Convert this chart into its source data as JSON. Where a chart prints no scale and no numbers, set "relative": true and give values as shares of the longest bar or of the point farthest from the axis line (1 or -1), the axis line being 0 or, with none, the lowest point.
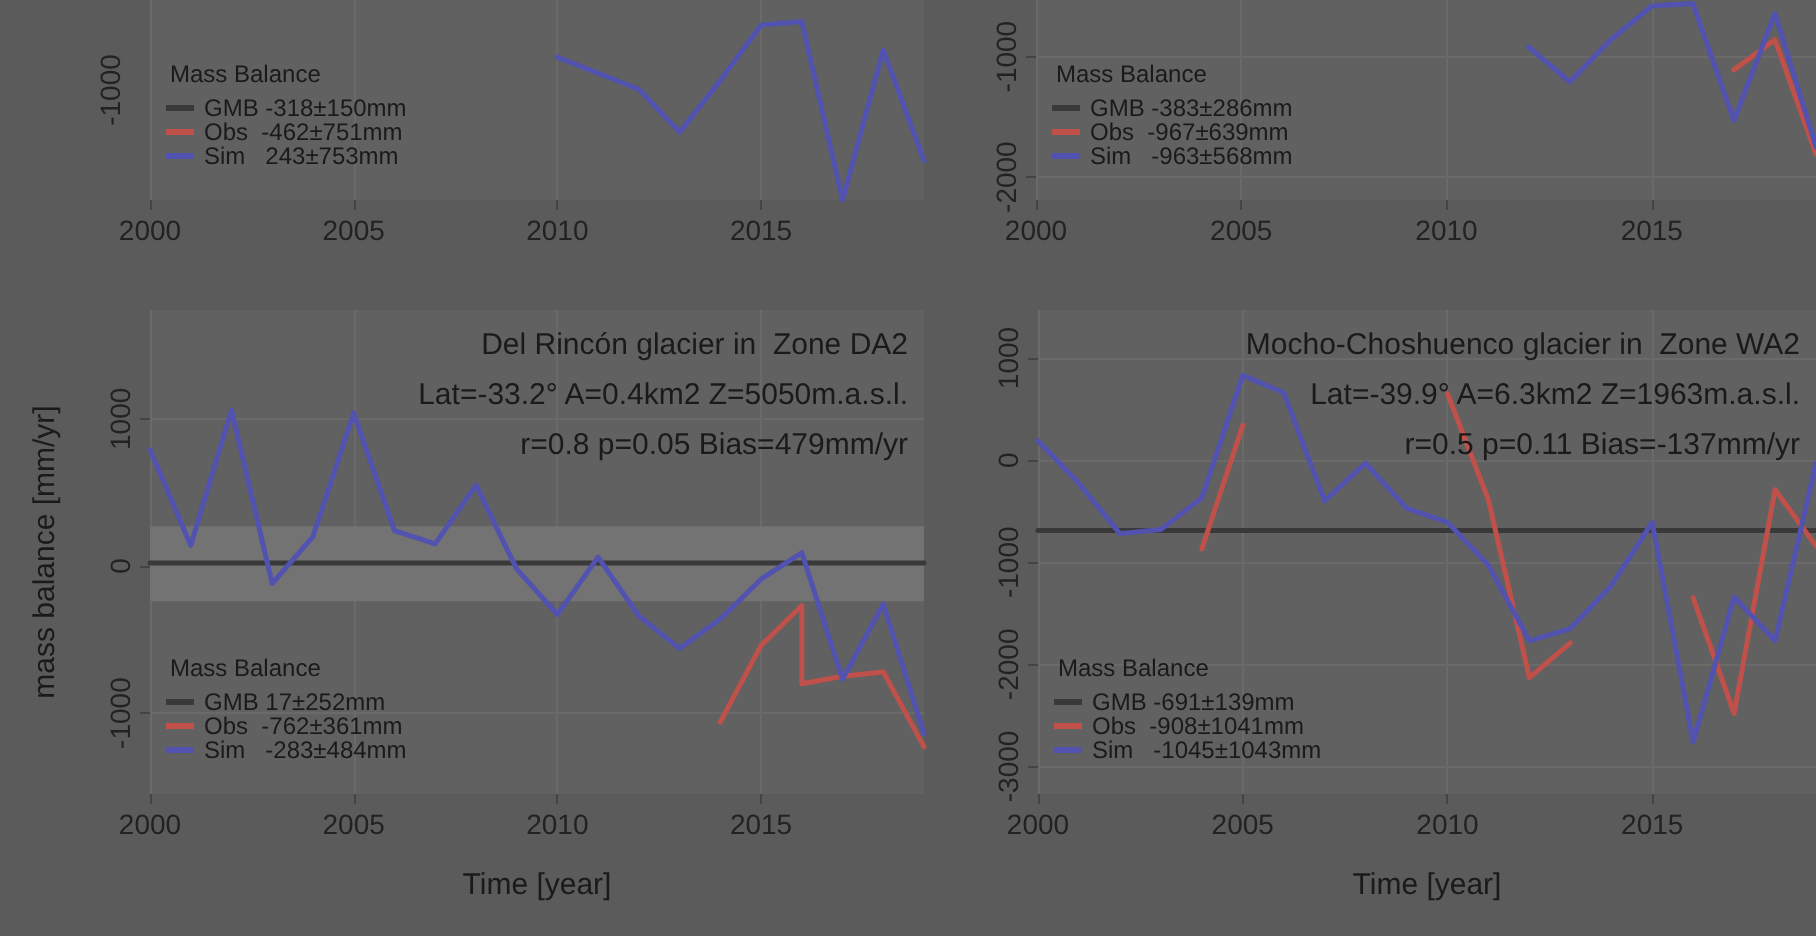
{
  "chart_data": [
    {
      "type": "line",
      "relative": true,
      "annotations": [
        "-1000"
      ],
      "legend_title": "Mass Balance",
      "legend": "bottom left",
      "grid": true,
      "marker": "none",
      "line_style": "solid",
      "xlim": [
        2000,
        2019
      ],
      "xticks": [
        2000,
        2005,
        2010,
        2015
      ],
      "series": [
        {
          "name": "GMB -318±150mm",
          "color": "#393939"
        },
        {
          "name": "Obs  -462±751mm",
          "color": "#c0504a"
        },
        {
          "name": "Sim   243±753mm",
          "color": "#5252b0",
          "x": [
            2010,
            2012,
            2013,
            2014,
            2015,
            2016,
            2017,
            2018,
            2019
          ],
          "values": [
            0.8,
            0.62,
            0.38,
            0.67,
            0.98,
            1,
            0,
            0.84,
            0.22
          ]
        }
      ]
    },
    {
      "type": "line",
      "legend_title": "Mass Balance",
      "legend": "bottom left",
      "grid": true,
      "marker": "none",
      "line_style": "solid",
      "xlim": [
        2000,
        2019
      ],
      "xticks": [
        2000,
        2005,
        2010,
        2015
      ],
      "ylim": [
        -2190,
        -530
      ],
      "yticks": [
        -2000,
        -1000
      ],
      "series": [
        {
          "name": "GMB -383±286mm",
          "color": "#393939"
        },
        {
          "name": "Obs  -967±639mm",
          "color": "#c0504a",
          "x": [
            2017,
            2018,
            2019
          ],
          "values": [
            -1110,
            -860,
            -1810
          ]
        },
        {
          "name": "Sim   -963±568mm",
          "color": "#5252b0",
          "x": [
            2012,
            2013,
            2014,
            2015,
            2016,
            2017,
            2018,
            2019
          ],
          "values": [
            -920,
            -1210,
            -860,
            -580,
            -560,
            -1530,
            -640,
            -1750
          ]
        }
      ]
    },
    {
      "type": "line",
      "title": "Del Rincón glacier in  Zone DA2",
      "subtitle": "Lat=-33.2° A=0.4km2 Z=5050m.a.s.l.",
      "annotations": [
        "r=0.8 p=0.05 Bias=479mm/yr"
      ],
      "xlabel": "Time [year]",
      "ylabel": "mass balance [mm/yr]",
      "legend_title": "Mass Balance",
      "legend": "bottom left",
      "grid": true,
      "marker": "none",
      "line_style": "solid",
      "x": [
        2000,
        2001,
        2002,
        2003,
        2004,
        2005,
        2006,
        2007,
        2008,
        2009,
        2010,
        2011,
        2012,
        2013,
        2014,
        2015,
        2016,
        2017,
        2018,
        2019
      ],
      "xlim": [
        2000,
        2019
      ],
      "xticks": [
        2000,
        2005,
        2010,
        2015
      ],
      "ylim": [
        -1550,
        1740
      ],
      "yticks": [
        -1000,
        0,
        1000
      ],
      "series": [
        {
          "name": "GMB 17±252mm",
          "color": "#393939",
          "x": [
            2000,
            2019
          ],
          "values": [
            20,
            20
          ],
          "lower": [
            -240,
            -240
          ],
          "upper": [
            270,
            270
          ]
        },
        {
          "name": "Obs  -762±361mm",
          "color": "#c0504a",
          "x": [
            2014,
            2015,
            2016,
            2016,
            2017,
            2018,
            2019
          ],
          "values": [
            -1060,
            -540,
            -270,
            -800,
            -750,
            -720,
            -1230
          ]
        },
        {
          "name": "Sim   -283±484mm",
          "color": "#5252b0",
          "values": [
            790,
            140,
            1060,
            -120,
            200,
            1040,
            240,
            150,
            550,
            -20,
            -330,
            60,
            -340,
            -560,
            -360,
            -90,
            90,
            -770,
            -260,
            -1140
          ]
        }
      ]
    },
    {
      "type": "line",
      "title": "Mocho-Choshuenco glacier in  Zone WA2",
      "subtitle": "Lat=-39.9° A=6.3km2 Z=1963m.a.s.l.",
      "annotations": [
        "r=0.5 p=0.11 Bias=-137mm/yr"
      ],
      "xlabel": "Time [year]",
      "legend_title": "Mass Balance",
      "legend": "bottom left",
      "grid": true,
      "marker": "none",
      "line_style": "solid",
      "x": [
        2000,
        2001,
        2002,
        2003,
        2004,
        2005,
        2006,
        2007,
        2008,
        2009,
        2010,
        2011,
        2012,
        2013,
        2014,
        2015,
        2016,
        2017,
        2018,
        2019
      ],
      "xlim": [
        2000,
        2019
      ],
      "xticks": [
        2000,
        2005,
        2010,
        2015
      ],
      "ylim": [
        -3270,
        1470
      ],
      "yticks": [
        -3000,
        -2000,
        -1000,
        0,
        1000
      ],
      "series": [
        {
          "name": "GMB -691±139mm",
          "color": "#393939",
          "x": [
            2000,
            2019
          ],
          "values": [
            -690,
            -690
          ]
        },
        {
          "name": "Obs  -908±1041mm",
          "color": "#c0504a",
          "values": [
            null,
            null,
            null,
            null,
            -870,
            340,
            null,
            null,
            null,
            null,
            650,
            -390,
            -2130,
            -1790,
            null,
            null,
            -1350,
            -2480,
            -290,
            -840
          ]
        },
        {
          "name": "Sim   -1045±1043mm",
          "color": "#5252b0",
          "values": [
            190,
            -230,
            -720,
            -680,
            -370,
            830,
            660,
            -400,
            -30,
            -470,
            -610,
            -1030,
            -1770,
            -1650,
            -1230,
            -610,
            -2760,
            -1340,
            -1770,
            -30
          ]
        }
      ]
    }
  ]
}
